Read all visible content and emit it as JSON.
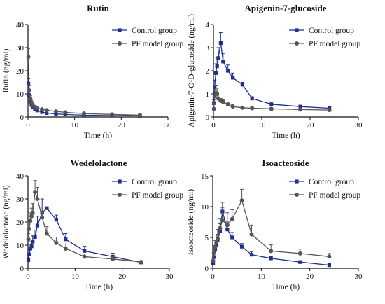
{
  "chart_data": [
    {
      "type": "line",
      "title": "Rutin",
      "xlabel": "Time (h)",
      "ylabel": "Rutin (ng/ml)",
      "xlim": [
        0,
        30
      ],
      "ylim": [
        0,
        40
      ],
      "xticks": [
        0,
        10,
        20,
        30
      ],
      "yticks": [
        0,
        10,
        20,
        30,
        40
      ],
      "legend_position": "top-right",
      "series": [
        {
          "name": "Control group",
          "color": "#1f2f8f",
          "marker": "square",
          "x": [
            0.083,
            0.25,
            0.5,
            0.75,
            1,
            1.5,
            2,
            3,
            4,
            6,
            8,
            12,
            18,
            24
          ],
          "y": [
            14.5,
            9.5,
            6.5,
            5.2,
            4.2,
            3.4,
            2.8,
            2.1,
            1.7,
            1.3,
            1.1,
            0.8,
            0.6,
            0.5
          ],
          "err": [
            2,
            1.5,
            0.9,
            0.7,
            0.5,
            0.4,
            0.4,
            0.3,
            0.2,
            0.2,
            0.2,
            0.1,
            0.1,
            0.1
          ]
        },
        {
          "name": "PF model group",
          "color": "#555555",
          "marker": "circle",
          "x": [
            0.083,
            0.25,
            0.5,
            0.75,
            1,
            1.5,
            2,
            3,
            4,
            6,
            8,
            12,
            18,
            24
          ],
          "y": [
            26,
            11.5,
            8,
            6.2,
            5.2,
            4.3,
            3.8,
            3.3,
            2.9,
            2.4,
            2,
            1.5,
            1.1,
            0.8
          ],
          "err": [
            3.5,
            2,
            1.2,
            1,
            0.8,
            0.6,
            0.5,
            0.4,
            0.4,
            0.3,
            0.3,
            0.2,
            0.2,
            0.1
          ]
        }
      ]
    },
    {
      "type": "line",
      "title": "Apigenin-7-glucoside",
      "xlabel": "Time (h)",
      "ylabel": "Apigenin-7-O-D-glucoside (ng/ml)",
      "xlim": [
        0,
        30
      ],
      "ylim": [
        0,
        4
      ],
      "xticks": [
        0,
        10,
        20,
        30
      ],
      "yticks": [
        0,
        1,
        2,
        3,
        4
      ],
      "legend_position": "top-right",
      "series": [
        {
          "name": "Control group",
          "color": "#1f2f8f",
          "marker": "square",
          "x": [
            0.083,
            0.25,
            0.5,
            0.75,
            1,
            1.5,
            2,
            3,
            4,
            6,
            8,
            12,
            18,
            24
          ],
          "y": [
            0.6,
            1.3,
            1.9,
            2.2,
            2.55,
            3.2,
            2.4,
            2,
            1.7,
            1.4,
            0.8,
            0.55,
            0.45,
            0.38
          ],
          "err": [
            0.15,
            0.3,
            0.4,
            0.35,
            0.45,
            0.45,
            0.35,
            0.25,
            0.2,
            0.1,
            0.08,
            0.1,
            0.05,
            0.05
          ]
        },
        {
          "name": "PF model group",
          "color": "#555555",
          "marker": "circle",
          "x": [
            0.083,
            0.25,
            0.5,
            0.75,
            1,
            1.5,
            2,
            3,
            4,
            6,
            8,
            12,
            18,
            24
          ],
          "y": [
            0.35,
            0.9,
            1.05,
            1,
            0.8,
            0.7,
            0.65,
            0.55,
            0.45,
            0.4,
            0.38,
            0.35,
            0.32,
            0.3
          ],
          "err": [
            0.25,
            0.3,
            0.3,
            0.25,
            0.15,
            0.1,
            0.1,
            0.1,
            0.08,
            0.05,
            0.05,
            0.05,
            0.05,
            0.04
          ]
        }
      ]
    },
    {
      "type": "line",
      "title": "Wedelolactone",
      "xlabel": "Time (h)",
      "ylabel": "Wedelolactone (ng/ml)",
      "xlim": [
        0,
        30
      ],
      "ylim": [
        0,
        40
      ],
      "xticks": [
        0,
        10,
        20,
        30
      ],
      "yticks": [
        0,
        10,
        20,
        30,
        40
      ],
      "legend_position": "top-right",
      "series": [
        {
          "name": "Control group",
          "color": "#1f2f8f",
          "marker": "square",
          "x": [
            0.083,
            0.25,
            0.5,
            0.75,
            1,
            1.5,
            2,
            3,
            4,
            6,
            8,
            12,
            18,
            24
          ],
          "y": [
            3.5,
            6,
            8.5,
            9.5,
            11.5,
            13.5,
            18.5,
            24,
            26,
            21,
            12.5,
            7.5,
            5,
            2.5
          ],
          "err": [
            1,
            1.5,
            2,
            2,
            2.5,
            3,
            4,
            6,
            0.5,
            2,
            2.5,
            2,
            1.5,
            0.3
          ]
        },
        {
          "name": "PF model group",
          "color": "#555555",
          "marker": "circle",
          "x": [
            0.083,
            0.25,
            0.5,
            0.75,
            1,
            1.5,
            2,
            3,
            4,
            6,
            8,
            12,
            18,
            24
          ],
          "y": [
            12.5,
            17,
            20.5,
            22.5,
            24,
            33,
            30,
            22,
            15,
            11,
            8.5,
            5,
            4,
            2.7
          ],
          "err": [
            2.5,
            3,
            3.5,
            3.5,
            4,
            5,
            5,
            4.5,
            3,
            2.5,
            2,
            1.2,
            1,
            0.5
          ]
        }
      ]
    },
    {
      "type": "line",
      "title": "Isoacteoside",
      "xlabel": "Time (h)",
      "ylabel": "Isoacteoside (ng/ml)",
      "xlim": [
        0,
        30
      ],
      "ylim": [
        0,
        15
      ],
      "xticks": [
        0,
        10,
        20,
        30
      ],
      "yticks": [
        0,
        5,
        10,
        15
      ],
      "legend_position": "top-right",
      "series": [
        {
          "name": "Control group",
          "color": "#1f2f8f",
          "marker": "square",
          "x": [
            0.083,
            0.25,
            0.5,
            0.75,
            1,
            1.5,
            2,
            3,
            4,
            6,
            8,
            12,
            18,
            24
          ],
          "y": [
            0.8,
            1.8,
            3,
            3.8,
            4.5,
            6,
            9.2,
            6.3,
            5,
            3.5,
            2.2,
            1.6,
            1,
            0.5
          ],
          "err": [
            0.3,
            0.5,
            0.7,
            0.8,
            1,
            1.2,
            1.5,
            1.2,
            0.8,
            0.5,
            0.5,
            0.3,
            0.2,
            0.1
          ]
        },
        {
          "name": "PF model group",
          "color": "#555555",
          "marker": "circle",
          "x": [
            0.083,
            0.25,
            0.5,
            0.75,
            1,
            1.5,
            2,
            3,
            4,
            6,
            8,
            12,
            18,
            24
          ],
          "y": [
            1.2,
            2.5,
            3.5,
            4.2,
            4.8,
            6.5,
            7.8,
            7,
            8,
            11,
            5.5,
            2.8,
            2.4,
            1.9
          ],
          "err": [
            0.4,
            0.7,
            1,
            1.2,
            1.5,
            1.6,
            2,
            2,
            1.5,
            1.8,
            1.5,
            1,
            0.7,
            0.5
          ]
        }
      ]
    }
  ]
}
